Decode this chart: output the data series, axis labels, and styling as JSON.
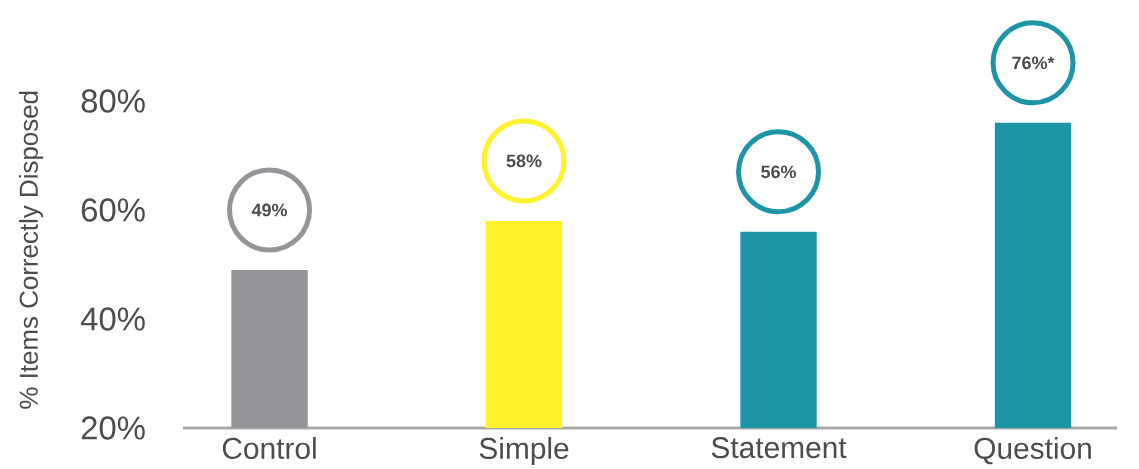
{
  "chart_data": {
    "type": "bar",
    "ylabel": "% Items Correctly Disposed",
    "categories": [
      "Control",
      "Simple",
      "Statement",
      "Question"
    ],
    "values": [
      49,
      58,
      56,
      76
    ],
    "colors": [
      "#939598",
      "#fff22d",
      "#1e95a5",
      "#1e95a5"
    ],
    "value_labels": [
      "49%",
      "58%",
      "56%",
      "76%*"
    ],
    "ylim": [
      20,
      80
    ],
    "yticks": [
      {
        "value": 20,
        "label": "20%"
      },
      {
        "value": 40,
        "label": "40%"
      },
      {
        "value": 60,
        "label": "60%"
      },
      {
        "value": 80,
        "label": "80%"
      }
    ],
    "grid": false
  }
}
